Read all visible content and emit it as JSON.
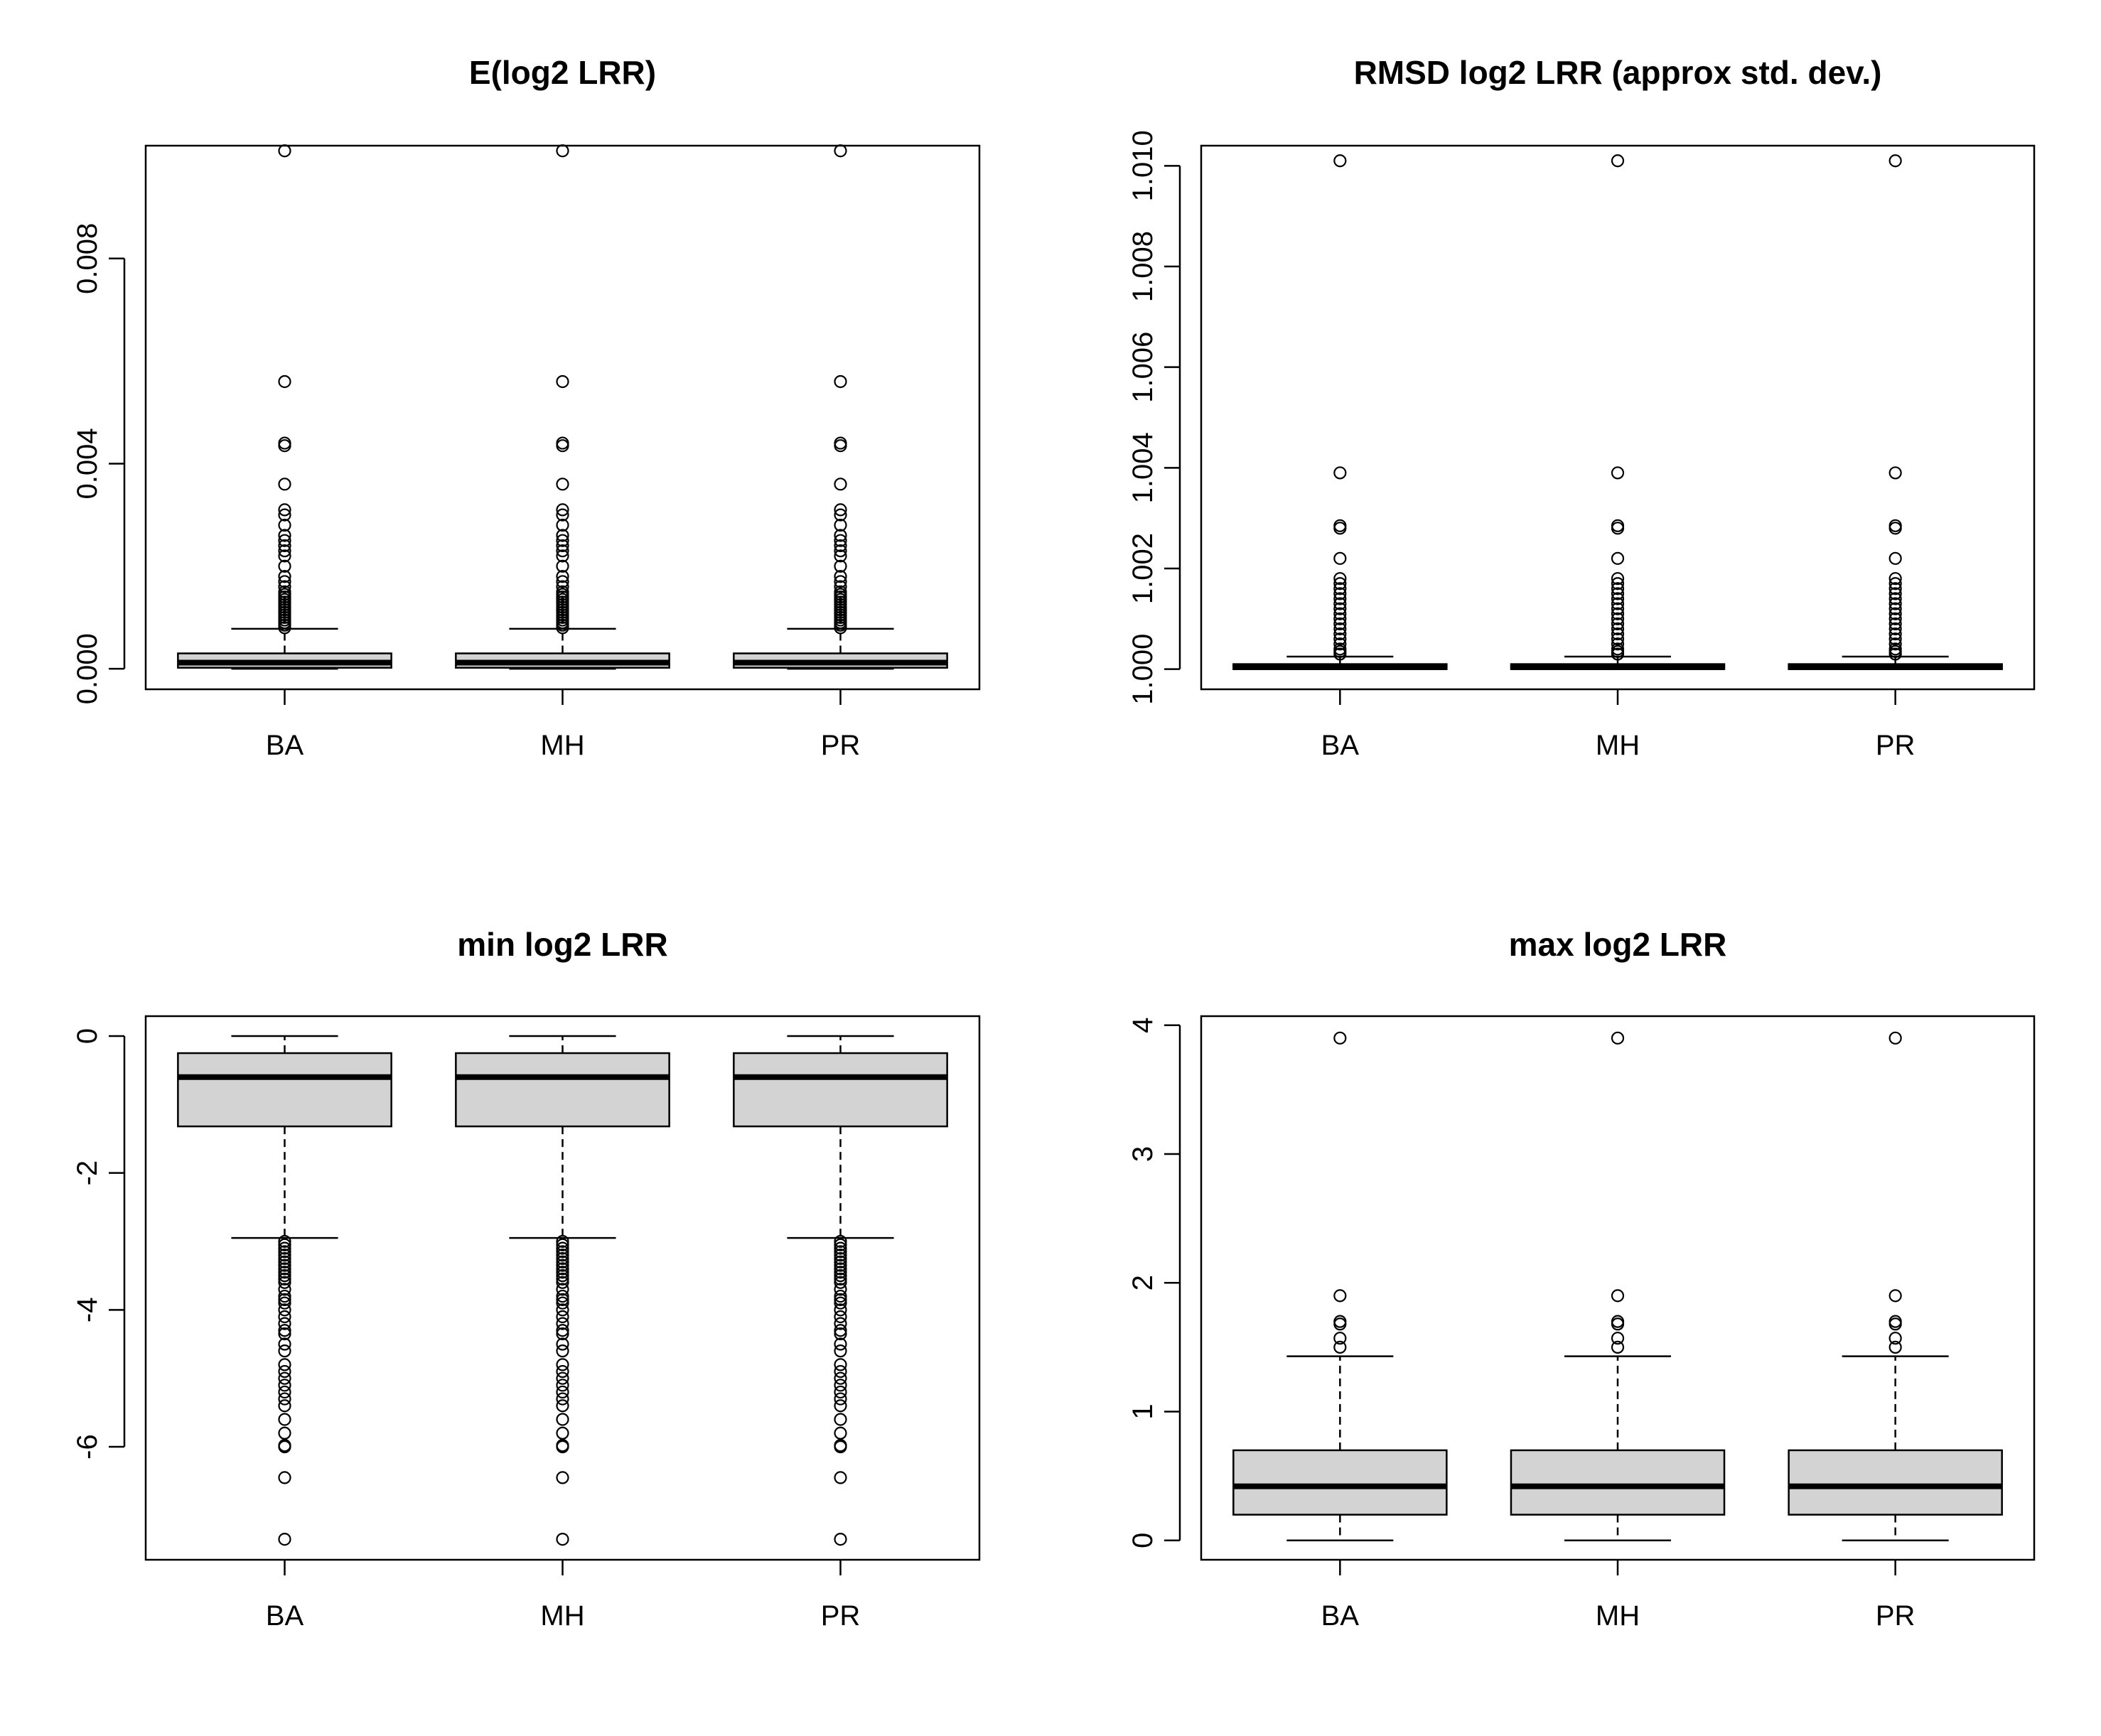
{
  "chart_data": [
    {
      "type": "boxplot",
      "title": "E(log2 LRR)",
      "categories": [
        "BA",
        "MH",
        "PR"
      ],
      "ylim": [
        -0.0004,
        0.0102
      ],
      "yticks": [
        0.0,
        0.004,
        0.008
      ],
      "ytick_labels": [
        "0.000",
        "0.004",
        "0.008"
      ],
      "boxes": [
        {
          "name": "BA",
          "whisker_low": 0.0,
          "q1": 2e-05,
          "median": 0.00012,
          "q3": 0.0003,
          "whisker_high": 0.00078
        },
        {
          "name": "MH",
          "whisker_low": 0.0,
          "q1": 2e-05,
          "median": 0.00012,
          "q3": 0.0003,
          "whisker_high": 0.00078
        },
        {
          "name": "PR",
          "whisker_low": 0.0,
          "q1": 2e-05,
          "median": 0.00012,
          "q3": 0.0003,
          "whisker_high": 0.00078
        }
      ],
      "outliers": [
        0.0101,
        0.0056,
        0.0044,
        0.00435,
        0.0036,
        0.0031,
        0.003,
        0.0028,
        0.0026,
        0.0025,
        0.0024,
        0.0023,
        0.0022,
        0.002,
        0.0018,
        0.0017,
        0.0016,
        0.0015,
        0.00145,
        0.0014,
        0.00135,
        0.0013,
        0.00125,
        0.0012,
        0.00115,
        0.0011,
        0.00105,
        0.001,
        0.00095,
        0.0009,
        0.00085,
        0.0008
      ]
    },
    {
      "type": "boxplot",
      "title": "RMSD log2  LRR (approx std. dev.)",
      "categories": [
        "BA",
        "MH",
        "PR"
      ],
      "ylim": [
        0.9996,
        1.0104
      ],
      "yticks": [
        1.0,
        1.002,
        1.004,
        1.006,
        1.008,
        1.01
      ],
      "ytick_labels": [
        "1.000",
        "1.002",
        "1.004",
        "1.006",
        "1.008",
        "1.010"
      ],
      "boxes": [
        {
          "name": "BA",
          "whisker_low": 1.0,
          "q1": 1.0,
          "median": 1.00004,
          "q3": 1.0001,
          "whisker_high": 1.00025
        },
        {
          "name": "MH",
          "whisker_low": 1.0,
          "q1": 1.0,
          "median": 1.00004,
          "q3": 1.0001,
          "whisker_high": 1.00025
        },
        {
          "name": "PR",
          "whisker_low": 1.0,
          "q1": 1.0,
          "median": 1.00004,
          "q3": 1.0001,
          "whisker_high": 1.00025
        }
      ],
      "outliers": [
        1.0101,
        1.0039,
        1.00285,
        1.0028,
        1.0022,
        1.0018,
        1.0017,
        1.0016,
        1.0015,
        1.0014,
        1.0013,
        1.0012,
        1.0011,
        1.001,
        1.0009,
        1.0008,
        1.0007,
        1.0006,
        1.0005,
        1.0004,
        1.00035,
        1.0003
      ]
    },
    {
      "type": "boxplot",
      "title": "min log2 LRR",
      "categories": [
        "BA",
        "MH",
        "PR"
      ],
      "ylim": [
        -7.65,
        0.29
      ],
      "yticks": [
        -6,
        -4,
        -2,
        0
      ],
      "ytick_labels": [
        "-6",
        "-4",
        "-2",
        "0"
      ],
      "boxes": [
        {
          "name": "BA",
          "whisker_low": -2.95,
          "q1": -1.32,
          "median": -0.6,
          "q3": -0.25,
          "whisker_high": 0.0
        },
        {
          "name": "MH",
          "whisker_low": -2.95,
          "q1": -1.32,
          "median": -0.6,
          "q3": -0.25,
          "whisker_high": 0.0
        },
        {
          "name": "PR",
          "whisker_low": -2.95,
          "q1": -1.32,
          "median": -0.6,
          "q3": -0.25,
          "whisker_high": 0.0
        }
      ],
      "outliers": [
        -3.0,
        -3.05,
        -3.1,
        -3.15,
        -3.2,
        -3.25,
        -3.3,
        -3.35,
        -3.4,
        -3.45,
        -3.5,
        -3.55,
        -3.6,
        -3.7,
        -3.8,
        -3.85,
        -3.9,
        -4.0,
        -4.1,
        -4.2,
        -4.3,
        -4.35,
        -4.5,
        -4.6,
        -4.8,
        -4.9,
        -5.0,
        -5.1,
        -5.2,
        -5.3,
        -5.4,
        -5.6,
        -5.8,
        -5.98,
        -6.0,
        -6.45,
        -7.35
      ]
    },
    {
      "type": "boxplot",
      "title": "max log2 LRR",
      "categories": [
        "BA",
        "MH",
        "PR"
      ],
      "ylim": [
        -0.15,
        4.07
      ],
      "yticks": [
        0,
        1,
        2,
        3,
        4
      ],
      "ytick_labels": [
        "0",
        "1",
        "2",
        "3",
        "4"
      ],
      "boxes": [
        {
          "name": "BA",
          "whisker_low": 0.0,
          "q1": 0.2,
          "median": 0.42,
          "q3": 0.7,
          "whisker_high": 1.43
        },
        {
          "name": "MH",
          "whisker_low": 0.0,
          "q1": 0.2,
          "median": 0.42,
          "q3": 0.7,
          "whisker_high": 1.43
        },
        {
          "name": "PR",
          "whisker_low": 0.0,
          "q1": 0.2,
          "median": 0.42,
          "q3": 0.7,
          "whisker_high": 1.43
        }
      ],
      "outliers": [
        3.9,
        1.9,
        1.7,
        1.68,
        1.57,
        1.5
      ]
    }
  ]
}
